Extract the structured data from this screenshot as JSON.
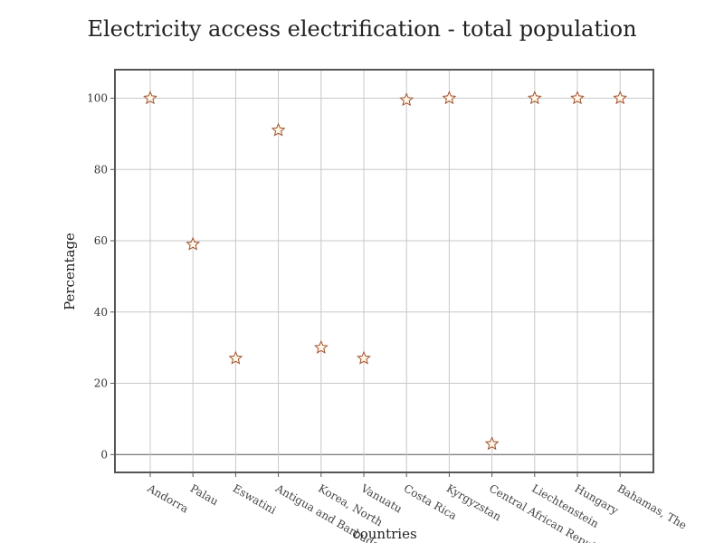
{
  "chart_data": {
    "type": "scatter",
    "title": "Electricity access electrification - total population",
    "xlabel": "countries",
    "ylabel": "Percentage",
    "categories": [
      "Andorra",
      "Palau",
      "Eswatini",
      "Antigua and Barbuda",
      "Korea, North",
      "Vanuatu",
      "Costa Rica",
      "Kyrgyzstan",
      "Central African Republic",
      "Liechtenstein",
      "Hungary",
      "Bahamas, The"
    ],
    "values": [
      100,
      59,
      27,
      91,
      30,
      27,
      99.5,
      100,
      3,
      100,
      100,
      100
    ],
    "ylim": [
      -5,
      108
    ],
    "yticks": [
      "0",
      "20",
      "40",
      "60",
      "80",
      "100"
    ],
    "grid": true,
    "marker": "star",
    "colors": {
      "marker_fill": "#fff5e6",
      "marker_stroke": "#a0522d",
      "grid": "#c8c8c8"
    }
  }
}
